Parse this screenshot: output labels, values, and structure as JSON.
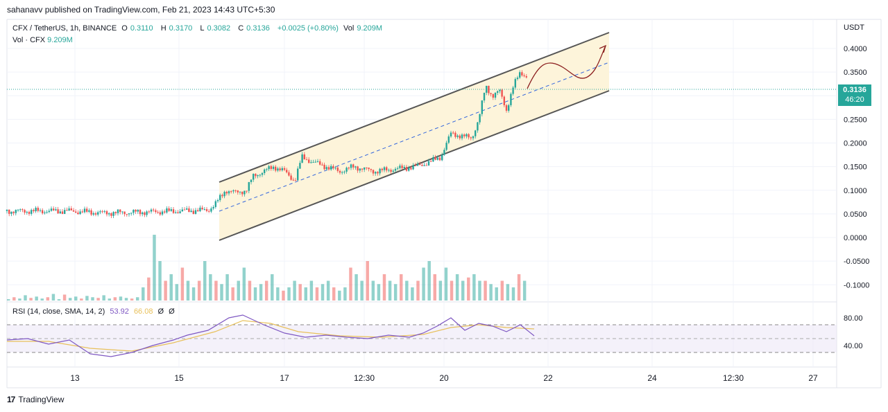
{
  "header": {
    "publisher": "sahanavv published on TradingView.com, Feb 21, 2023 14:43 UTC+5:30"
  },
  "legend": {
    "symbol": "CFX / TetherUS, 1h, BINANCE",
    "open_label": "O",
    "open": "0.3110",
    "high_label": "H",
    "high": "0.3170",
    "low_label": "L",
    "low": "0.3082",
    "close_label": "C",
    "close": "0.3136",
    "change": "+0.0025 (+0.80%)",
    "vol_label": "Vol",
    "vol": "9.209M",
    "vol_row_label": "Vol · CFX",
    "vol_row_value": "9.209M"
  },
  "rsi_legend": {
    "label": "RSI (14, close, SMA, 14, 2)",
    "rsi": "53.92",
    "sma": "66.08",
    "z1": "Ø",
    "z2": "Ø"
  },
  "price_axis": {
    "unit": "USDT",
    "badge_price": "0.3136",
    "badge_timer": "46:20"
  },
  "footer": {
    "logo_text": "17",
    "brand": "TradingView"
  },
  "colors": {
    "up": "#26a69a",
    "down": "#ef5350",
    "channel_fill": "#fdf3d8",
    "channel_line": "#555555",
    "rsi": "#7e57c2",
    "rsi_sma": "#e8c05a",
    "midline": "#3366dd",
    "arrow": "#8b1e1e"
  },
  "chart_data": {
    "type": "candlestick",
    "y_ticks": [
      "0.4000",
      "0.3500",
      "0.3000",
      "0.2500",
      "0.2000",
      "0.1500",
      "0.1000",
      "0.0500",
      "0.0000",
      "-0.0500",
      "-0.1000"
    ],
    "y_tick_values": [
      0.4,
      0.35,
      0.3,
      0.25,
      0.2,
      0.15,
      0.1,
      0.05,
      0.0,
      -0.05,
      -0.1
    ],
    "ylim": [
      -0.125,
      0.435
    ],
    "x_ticks": [
      "13",
      "15",
      "17",
      "12:30",
      "20",
      "22",
      "24",
      "12:30",
      "27"
    ],
    "rsi_ticks": [
      "80.00",
      "40.00"
    ],
    "rsi_tick_values": [
      80,
      40
    ],
    "rsi_bands": [
      70,
      50,
      30
    ],
    "last_price": 0.3136,
    "price_path": [
      [
        0,
        0.056
      ],
      [
        90,
        0.056
      ],
      [
        140,
        0.052
      ],
      [
        200,
        0.054
      ],
      [
        250,
        0.056
      ],
      [
        290,
        0.058
      ],
      [
        300,
        0.07
      ],
      [
        315,
        0.1
      ],
      [
        330,
        0.095
      ],
      [
        345,
        0.1
      ],
      [
        355,
        0.13
      ],
      [
        370,
        0.14
      ],
      [
        385,
        0.15
      ],
      [
        400,
        0.14
      ],
      [
        415,
        0.12
      ],
      [
        425,
        0.17
      ],
      [
        440,
        0.16
      ],
      [
        460,
        0.15
      ],
      [
        480,
        0.14
      ],
      [
        500,
        0.15
      ],
      [
        530,
        0.14
      ],
      [
        560,
        0.145
      ],
      [
        590,
        0.15
      ],
      [
        610,
        0.16
      ],
      [
        625,
        0.17
      ],
      [
        640,
        0.22
      ],
      [
        655,
        0.215
      ],
      [
        670,
        0.21
      ],
      [
        680,
        0.25
      ],
      [
        690,
        0.32
      ],
      [
        700,
        0.3
      ],
      [
        710,
        0.31
      ],
      [
        720,
        0.27
      ],
      [
        730,
        0.32
      ],
      [
        740,
        0.35
      ],
      [
        750,
        0.34
      ],
      [
        760,
        0.31
      ]
    ],
    "volumes": [
      0.2,
      0.5,
      0.3,
      0.8,
      0.4,
      0.6,
      0.3,
      0.5,
      1.0,
      0.2,
      0.9,
      0.4,
      0.6,
      0.3,
      0.7,
      0.5,
      0.4,
      0.8,
      0.3,
      0.5,
      0.6,
      0.4,
      0.3,
      0.5,
      2.0,
      3.5,
      10,
      6,
      3,
      4,
      2.5,
      5,
      3,
      2,
      3,
      6,
      4,
      3,
      2.5,
      4,
      2,
      3,
      5,
      3,
      2,
      2.5,
      3,
      4,
      2,
      1.5,
      2,
      3,
      2.5,
      2,
      3,
      2,
      2.5,
      3,
      2,
      1.5,
      2,
      5,
      4,
      3,
      6,
      3,
      2.5,
      4,
      3,
      2.5,
      4,
      3,
      2,
      3,
      5,
      6,
      4,
      3,
      5,
      3,
      4,
      3,
      3.5,
      4,
      3,
      3,
      2.5,
      2,
      3,
      2.5,
      2,
      4,
      3
    ],
    "rsi_path": [
      [
        0,
        48
      ],
      [
        30,
        50
      ],
      [
        60,
        42
      ],
      [
        90,
        48
      ],
      [
        120,
        28
      ],
      [
        150,
        24
      ],
      [
        180,
        30
      ],
      [
        210,
        40
      ],
      [
        240,
        48
      ],
      [
        260,
        55
      ],
      [
        290,
        62
      ],
      [
        320,
        80
      ],
      [
        340,
        84
      ],
      [
        370,
        70
      ],
      [
        400,
        58
      ],
      [
        430,
        52
      ],
      [
        460,
        55
      ],
      [
        490,
        52
      ],
      [
        520,
        50
      ],
      [
        550,
        55
      ],
      [
        580,
        52
      ],
      [
        600,
        58
      ],
      [
        620,
        68
      ],
      [
        640,
        80
      ],
      [
        660,
        62
      ],
      [
        680,
        72
      ],
      [
        700,
        68
      ],
      [
        720,
        60
      ],
      [
        740,
        70
      ],
      [
        760,
        54
      ]
    ],
    "rsi_sma_path": [
      [
        0,
        46
      ],
      [
        60,
        46
      ],
      [
        120,
        36
      ],
      [
        180,
        32
      ],
      [
        240,
        44
      ],
      [
        300,
        60
      ],
      [
        340,
        76
      ],
      [
        380,
        72
      ],
      [
        420,
        60
      ],
      [
        480,
        54
      ],
      [
        540,
        52
      ],
      [
        600,
        56
      ],
      [
        640,
        66
      ],
      [
        680,
        70
      ],
      [
        720,
        66
      ],
      [
        760,
        64
      ]
    ]
  }
}
